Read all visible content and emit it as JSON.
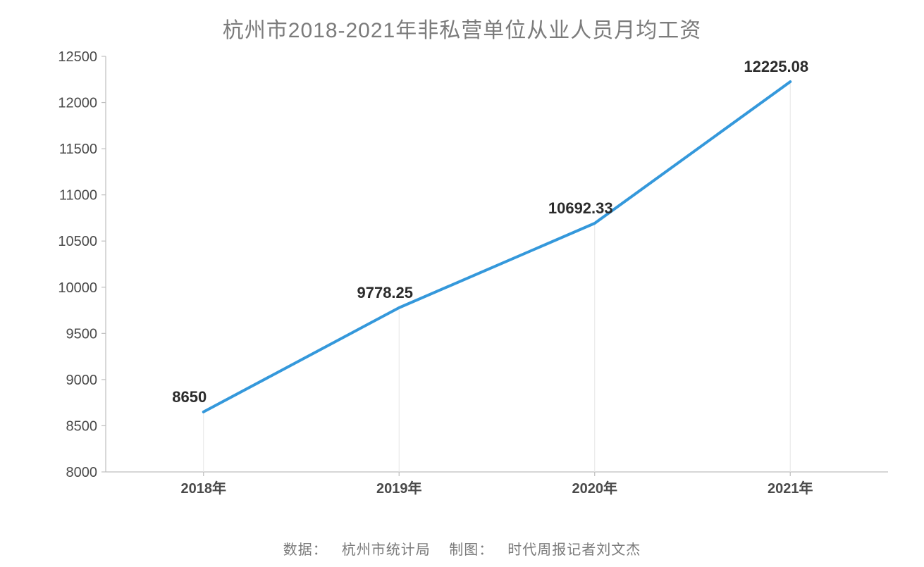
{
  "chart": {
    "type": "line",
    "title": "杭州市2018-2021年非私营单位从业人员月均工资",
    "title_fontsize": 30,
    "title_color": "#7b7b7b",
    "background_color": "#ffffff",
    "line_color": "#3498db",
    "line_width": 4,
    "axis_color": "#bfbfbf",
    "drop_line_color": "#e6e6e6",
    "label_color": "#2b2b2b",
    "tick_color": "#4a4a4a",
    "tick_fontsize": 20,
    "data_label_fontsize": 22,
    "ylim": [
      8000,
      12500
    ],
    "ytick_step": 500,
    "yticks": [
      "8000",
      "8500",
      "9000",
      "9500",
      "10000",
      "10500",
      "11000",
      "11500",
      "12000",
      "12500"
    ],
    "categories": [
      "2018年",
      "2019年",
      "2020年",
      "2021年"
    ],
    "values": [
      8650,
      9778.25,
      10692.33,
      12225.08
    ],
    "value_labels": [
      "8650",
      "9778.25",
      "10692.33",
      "12225.08"
    ],
    "source_prefix": "数据：",
    "source_org": "杭州市统计局",
    "credit_prefix": "制图：",
    "credit_name": "时代周报记者刘文杰"
  }
}
